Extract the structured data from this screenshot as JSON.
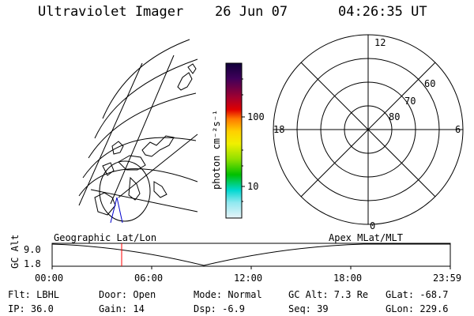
{
  "header": {
    "title": "Ultraviolet Imager",
    "date": "26 Jun 07",
    "time": "04:26:35 UT"
  },
  "colorbar": {
    "unit_label": "photon cm⁻²s⁻¹",
    "ticks": [
      "100",
      "10"
    ]
  },
  "polar_plot": {
    "mlt_labels": {
      "top": "12",
      "left": "18",
      "right": "6",
      "bottom": "0"
    },
    "lat_labels": [
      "60",
      "70",
      "80"
    ]
  },
  "timeline": {
    "left_title": "Geographic Lat/Lon",
    "right_title": "Apex MLat/MLT",
    "axis_label": "GC Alt",
    "y_ticks": [
      "9.0",
      "1.8"
    ],
    "x_ticks": [
      "00:00",
      "06:00",
      "12:00",
      "18:00",
      "23:59"
    ],
    "cursor_time": "04:26"
  },
  "info": {
    "flt": "Flt: LBHL",
    "ip": "IP: 36.0",
    "door": "Door: Open",
    "gain": "Gain: 14",
    "mode": "Mode: Normal",
    "dsp": "Dsp:    -6.9",
    "gc_alt": "GC Alt: 7.3 Re",
    "seq": "Seq: 39",
    "glat": "GLat: -68.7",
    "glon": "GLon: 229.6"
  },
  "colors": {
    "cursor": "#ff0000",
    "track": "#0000cc"
  }
}
